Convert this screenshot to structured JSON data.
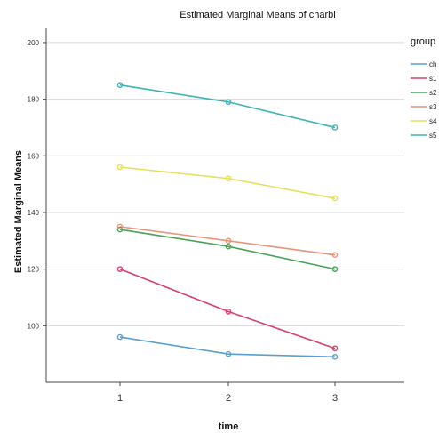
{
  "chart_data": {
    "type": "line",
    "title": "Estimated Marginal Means of charbi",
    "xlabel": "time",
    "ylabel": "Estimated Marginal Means",
    "categories": [
      "1",
      "2",
      "3"
    ],
    "ylim": [
      80,
      205
    ],
    "yticks": [
      "100",
      "120",
      "140",
      "160",
      "180",
      "200"
    ],
    "grid": "horizontal",
    "legend_position": "right",
    "legend_title": "group",
    "series": [
      {
        "name": "ch",
        "color": "#5a9fd0",
        "values": [
          96,
          90,
          89
        ]
      },
      {
        "name": "s1",
        "color": "#d8406a",
        "values": [
          120,
          105,
          92
        ]
      },
      {
        "name": "s2",
        "color": "#48a258",
        "values": [
          134,
          128,
          120
        ]
      },
      {
        "name": "s3",
        "color": "#e89478",
        "values": [
          135,
          130,
          125
        ]
      },
      {
        "name": "s4",
        "color": "#e6e05a",
        "values": [
          156,
          152,
          145
        ]
      },
      {
        "name": "s5",
        "color": "#3eb4b4",
        "values": [
          185,
          179,
          170
        ]
      }
    ]
  }
}
